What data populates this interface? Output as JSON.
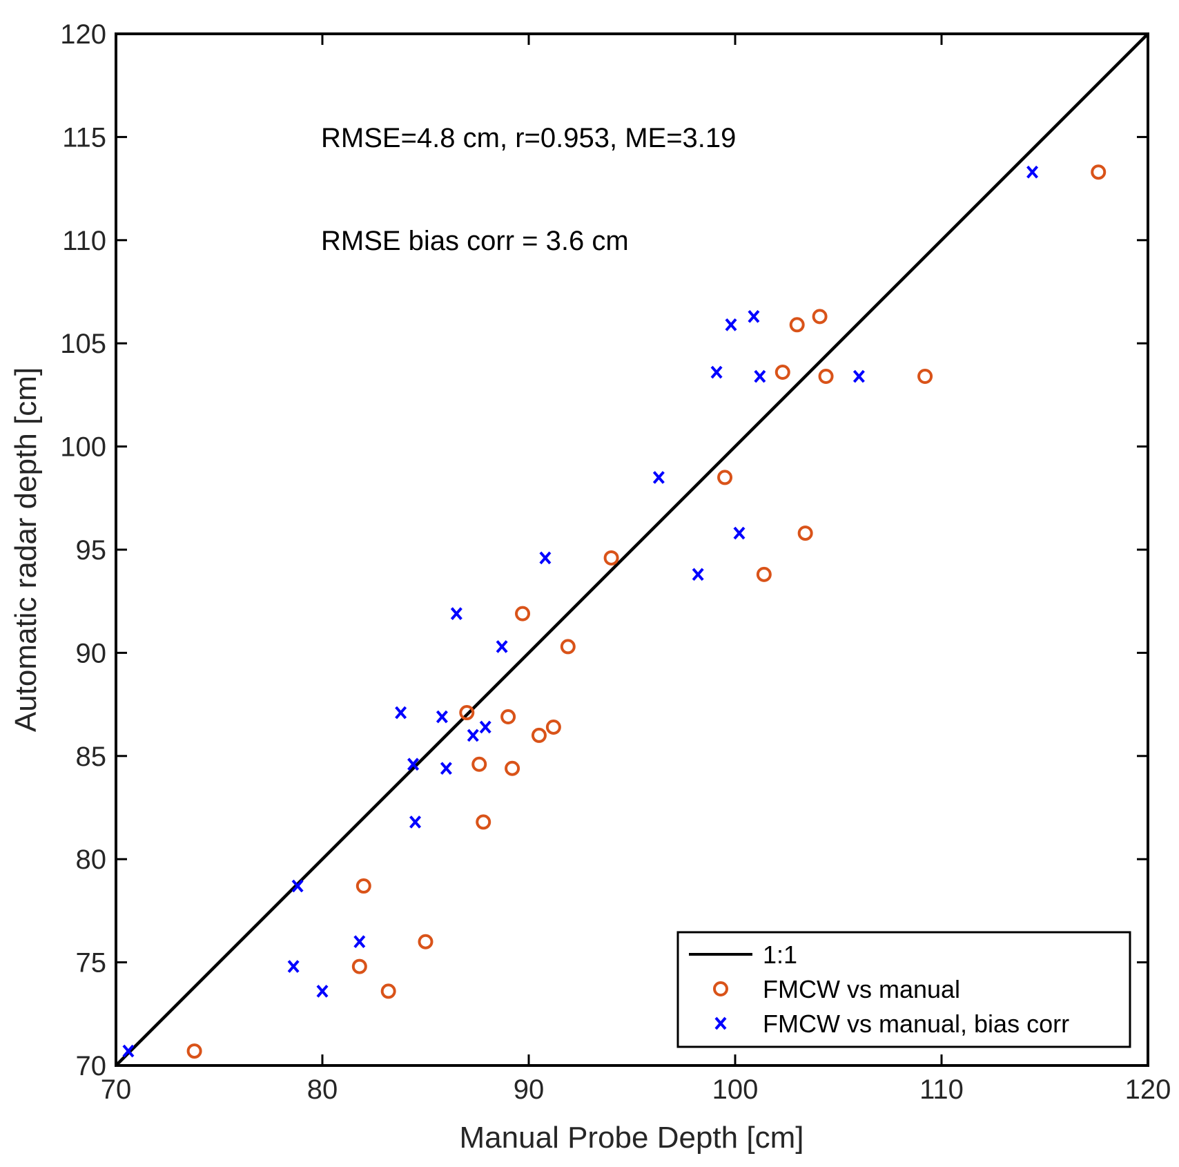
{
  "chart_data": {
    "type": "scatter",
    "title": "",
    "xlabel": "Manual Probe Depth [cm]",
    "ylabel": "Automatic radar depth [cm]",
    "xlim": [
      70,
      120
    ],
    "ylim": [
      70,
      120
    ],
    "xticks": [
      "70",
      "80",
      "90",
      "100",
      "110",
      "120"
    ],
    "yticks": [
      "70",
      "75",
      "80",
      "85",
      "90",
      "95",
      "100",
      "105",
      "110",
      "115",
      "120"
    ],
    "grid": false,
    "legend_position": "bottom-right",
    "annotations": [
      "RMSE=4.8 cm, r=0.953, ME=3.19",
      "RMSE bias corr = 3.6 cm"
    ],
    "series": [
      {
        "name": "1:1",
        "kind": "line",
        "color": "#000000",
        "points": [
          [
            70,
            70
          ],
          [
            120,
            120
          ]
        ]
      },
      {
        "name": "FMCW vs manual",
        "kind": "marker-circle",
        "color": "#D95319",
        "points": [
          [
            117.6,
            113.3
          ],
          [
            104.1,
            106.3
          ],
          [
            103.0,
            105.9
          ],
          [
            102.3,
            103.6
          ],
          [
            104.4,
            103.4
          ],
          [
            109.2,
            103.4
          ],
          [
            99.5,
            98.5
          ],
          [
            103.4,
            95.8
          ],
          [
            101.4,
            93.8
          ],
          [
            94.0,
            94.6
          ],
          [
            89.7,
            91.9
          ],
          [
            91.9,
            90.3
          ],
          [
            87.0,
            87.1
          ],
          [
            89.0,
            86.9
          ],
          [
            90.5,
            86.0
          ],
          [
            91.2,
            86.4
          ],
          [
            87.6,
            84.6
          ],
          [
            89.2,
            84.4
          ],
          [
            87.8,
            81.8
          ],
          [
            82.0,
            78.7
          ],
          [
            85.0,
            76.0
          ],
          [
            81.8,
            74.8
          ],
          [
            83.2,
            73.6
          ],
          [
            73.8,
            70.7
          ]
        ]
      },
      {
        "name": "FMCW vs manual, bias corr",
        "kind": "marker-x",
        "color": "#0000FF",
        "points": [
          [
            114.4,
            113.3
          ],
          [
            100.9,
            106.3
          ],
          [
            99.8,
            105.9
          ],
          [
            99.1,
            103.6
          ],
          [
            101.2,
            103.4
          ],
          [
            106.0,
            103.4
          ],
          [
            96.3,
            98.5
          ],
          [
            100.2,
            95.8
          ],
          [
            98.2,
            93.8
          ],
          [
            90.8,
            94.6
          ],
          [
            86.5,
            91.9
          ],
          [
            88.7,
            90.3
          ],
          [
            83.8,
            87.1
          ],
          [
            85.8,
            86.9
          ],
          [
            87.3,
            86.0
          ],
          [
            87.9,
            86.4
          ],
          [
            84.4,
            84.6
          ],
          [
            86.0,
            84.4
          ],
          [
            84.5,
            81.8
          ],
          [
            78.8,
            78.7
          ],
          [
            81.8,
            76.0
          ],
          [
            78.6,
            74.8
          ],
          [
            80.0,
            73.6
          ],
          [
            70.6,
            70.7
          ]
        ]
      }
    ]
  }
}
